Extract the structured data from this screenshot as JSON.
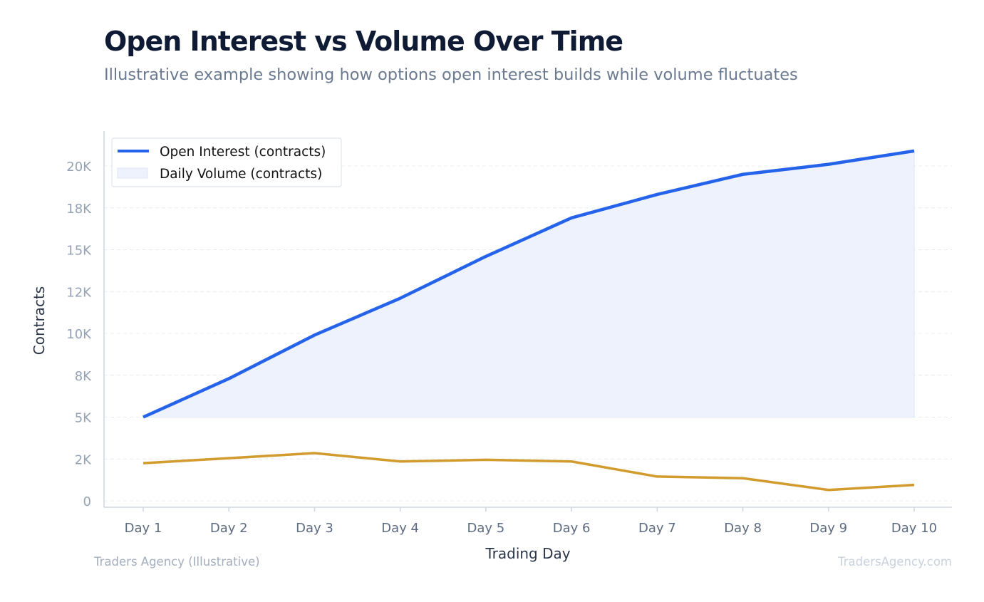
{
  "header": {
    "title": "Open Interest vs Volume Over Time",
    "subtitle": "Illustrative example showing how options open interest builds while volume fluctuates"
  },
  "footer": {
    "left": "Traders Agency (Illustrative)",
    "right": "TradersAgency.com"
  },
  "colors": {
    "open_interest": "#2563eb",
    "open_interest_fill": "#eef2fd",
    "volume": "#d29b2e",
    "grid": "#e8ecf1",
    "axis": "#cdd5df"
  },
  "chart_data": {
    "type": "line",
    "xlabel": "Trading Day",
    "ylabel": "Contracts",
    "categories": [
      "Day 1",
      "Day 2",
      "Day 3",
      "Day 4",
      "Day 5",
      "Day 6",
      "Day 7",
      "Day 8",
      "Day 9",
      "Day 10"
    ],
    "ylim": [
      0,
      22000
    ],
    "yticks": [
      0,
      2500,
      5000,
      7500,
      10000,
      12500,
      15000,
      17500,
      20000
    ],
    "ytick_labels": [
      "0",
      "2K",
      "5K",
      "8K",
      "10K",
      "12K",
      "15K",
      "18K",
      "20K"
    ],
    "grid": true,
    "legend_position": "top-left",
    "legend": [
      "Open Interest (contracts)",
      "Daily Volume (contracts)"
    ],
    "series": [
      {
        "name": "Open Interest (contracts)",
        "values": [
          5000,
          7300,
          9900,
          12100,
          14600,
          16900,
          18300,
          19500,
          20100,
          20900
        ]
      },
      {
        "name": "Daily Volume (contracts)",
        "values": [
          2250,
          2550,
          2850,
          2350,
          2450,
          2350,
          1450,
          1350,
          650,
          950
        ]
      }
    ]
  }
}
